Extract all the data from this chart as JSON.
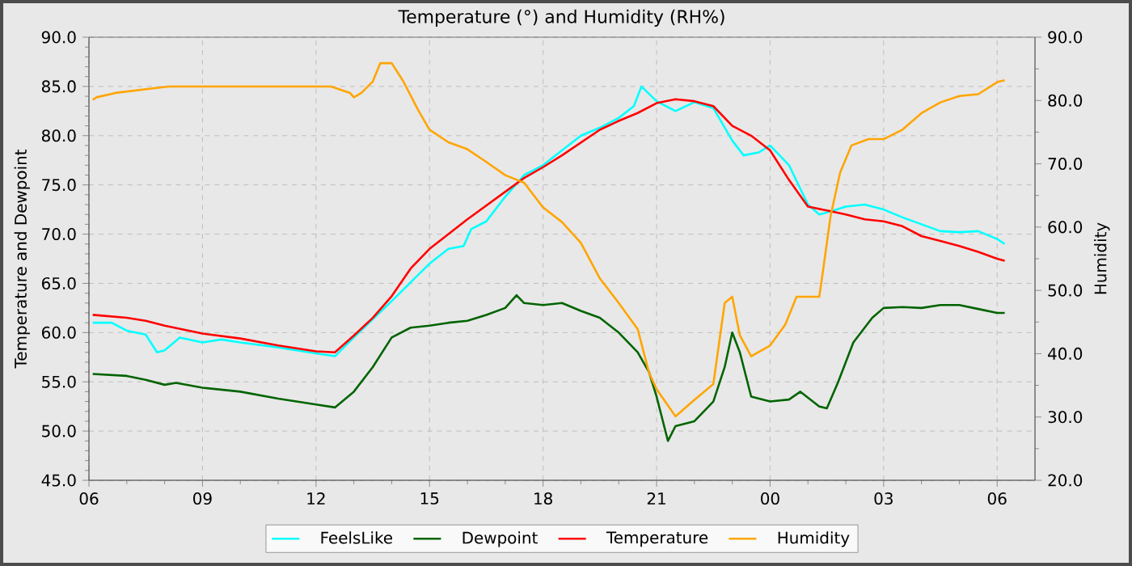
{
  "chart_data": {
    "type": "line",
    "title": "Temperature (°) and Humidity (RH%)",
    "ylabel": "Temperature and Dewpoint",
    "y2label": "Humidity",
    "xlim": [
      6,
      31
    ],
    "xticks": [
      {
        "value": 6,
        "label": "06"
      },
      {
        "value": 9,
        "label": "09"
      },
      {
        "value": 12,
        "label": "12"
      },
      {
        "value": 15,
        "label": "15"
      },
      {
        "value": 18,
        "label": "18"
      },
      {
        "value": 21,
        "label": "21"
      },
      {
        "value": 24,
        "label": "00"
      },
      {
        "value": 27,
        "label": "03"
      },
      {
        "value": 30,
        "label": "06"
      }
    ],
    "ylim": [
      45,
      90
    ],
    "yticks": [
      {
        "value": 45,
        "label": "45.0"
      },
      {
        "value": 50,
        "label": "50.0"
      },
      {
        "value": 55,
        "label": "55.0"
      },
      {
        "value": 60,
        "label": "60.0"
      },
      {
        "value": 65,
        "label": "65.0"
      },
      {
        "value": 70,
        "label": "70.0"
      },
      {
        "value": 75,
        "label": "75.0"
      },
      {
        "value": 80,
        "label": "80.0"
      },
      {
        "value": 85,
        "label": "85.0"
      },
      {
        "value": 90,
        "label": "90.0"
      }
    ],
    "y2lim": [
      20,
      90
    ],
    "y2ticks": [
      {
        "value": 20,
        "label": "20.0"
      },
      {
        "value": 30,
        "label": "30.0"
      },
      {
        "value": 40,
        "label": "40.0"
      },
      {
        "value": 50,
        "label": "50.0"
      },
      {
        "value": 60,
        "label": "60.0"
      },
      {
        "value": 70,
        "label": "70.0"
      },
      {
        "value": 80,
        "label": "80.0"
      },
      {
        "value": 90,
        "label": "90.0"
      }
    ],
    "grid": true,
    "legend": "bottom",
    "marker": "none",
    "line_style": "solid",
    "series": [
      {
        "name": "FeelsLike",
        "color": "#00ffff",
        "x": [
          6.1,
          6.6,
          7.0,
          7.5,
          7.8,
          8.0,
          8.4,
          9.0,
          9.5,
          10.0,
          11.0,
          12.0,
          12.5,
          13.0,
          14.0,
          15.0,
          15.5,
          15.9,
          16.1,
          16.5,
          17.0,
          17.5,
          18.0,
          18.5,
          19.0,
          19.5,
          20.0,
          20.4,
          20.6,
          21.0,
          21.5,
          22.0,
          22.5,
          23.0,
          23.3,
          23.7,
          24.0,
          24.5,
          25.0,
          25.3,
          25.6,
          26.0,
          26.5,
          27.0,
          27.5,
          28.0,
          28.5,
          29.0,
          29.5,
          30.0,
          30.2
        ],
        "values": [
          61.0,
          61.0,
          60.2,
          59.8,
          58.0,
          58.2,
          59.5,
          59.0,
          59.3,
          59.0,
          58.5,
          57.9,
          57.6,
          59.5,
          63.2,
          67.0,
          68.5,
          68.8,
          70.5,
          71.3,
          73.8,
          76.0,
          77.0,
          78.5,
          80.0,
          80.8,
          81.8,
          83.0,
          85.0,
          83.5,
          82.5,
          83.4,
          82.8,
          79.5,
          78.0,
          78.3,
          79.0,
          77.0,
          73.0,
          72.0,
          72.3,
          72.8,
          73.0,
          72.5,
          71.7,
          71.0,
          70.3,
          70.2,
          70.3,
          69.5,
          69.0
        ]
      },
      {
        "name": "Dewpoint",
        "color": "#006400",
        "x": [
          6.1,
          7.0,
          7.5,
          8.0,
          8.3,
          9.0,
          10.0,
          11.0,
          12.0,
          12.5,
          13.0,
          13.5,
          14.0,
          14.5,
          15.0,
          15.5,
          16.0,
          16.5,
          17.0,
          17.3,
          17.5,
          18.0,
          18.5,
          19.0,
          19.5,
          20.0,
          20.5,
          20.8,
          21.0,
          21.3,
          21.5,
          22.0,
          22.5,
          22.8,
          23.0,
          23.2,
          23.5,
          24.0,
          24.5,
          24.8,
          25.3,
          25.5,
          25.8,
          26.2,
          26.7,
          27.0,
          27.5,
          28.0,
          28.5,
          29.0,
          29.5,
          30.0,
          30.2
        ],
        "values": [
          55.8,
          55.6,
          55.2,
          54.7,
          54.9,
          54.4,
          54.0,
          53.3,
          52.7,
          52.4,
          54.0,
          56.5,
          59.5,
          60.5,
          60.7,
          61.0,
          61.2,
          61.8,
          62.5,
          63.8,
          63.0,
          62.8,
          63.0,
          62.2,
          61.5,
          60.0,
          58.0,
          56.0,
          53.5,
          49.0,
          50.5,
          51.0,
          53.0,
          56.5,
          60.0,
          58.0,
          53.5,
          53.0,
          53.2,
          54.0,
          52.5,
          52.3,
          55.0,
          59.0,
          61.5,
          62.5,
          62.6,
          62.5,
          62.8,
          62.8,
          62.4,
          62.0,
          62.0
        ]
      },
      {
        "name": "Temperature",
        "color": "#ff0000",
        "x": [
          6.1,
          7.0,
          7.5,
          8.0,
          9.0,
          10.0,
          11.0,
          12.0,
          12.5,
          13.0,
          13.5,
          14.0,
          14.5,
          15.0,
          15.5,
          16.0,
          17.0,
          17.5,
          18.0,
          18.5,
          19.0,
          19.5,
          20.0,
          20.5,
          21.0,
          21.5,
          22.0,
          22.5,
          23.0,
          23.5,
          24.0,
          24.5,
          25.0,
          25.5,
          26.0,
          26.5,
          27.0,
          27.5,
          28.0,
          28.5,
          29.0,
          29.5,
          30.0,
          30.2
        ],
        "values": [
          61.8,
          61.5,
          61.2,
          60.7,
          59.9,
          59.4,
          58.7,
          58.1,
          58.0,
          59.7,
          61.5,
          63.7,
          66.5,
          68.5,
          70.0,
          71.5,
          74.3,
          75.7,
          76.8,
          78.0,
          79.3,
          80.6,
          81.5,
          82.3,
          83.3,
          83.7,
          83.5,
          83.0,
          81.0,
          80.0,
          78.5,
          75.5,
          72.8,
          72.4,
          72.0,
          71.5,
          71.3,
          70.8,
          69.8,
          69.3,
          68.8,
          68.2,
          67.5,
          67.3
        ]
      },
      {
        "name": "Humidity",
        "color": "#ffa500",
        "axis": "y2",
        "x": [
          6.1,
          6.2,
          6.7,
          8.1,
          12.4,
          12.9,
          13.0,
          13.2,
          13.5,
          13.7,
          14.0,
          14.3,
          14.7,
          15.0,
          15.5,
          16.0,
          16.5,
          17.0,
          17.5,
          18.0,
          18.5,
          19.0,
          19.5,
          20.0,
          20.5,
          20.8,
          21.0,
          21.5,
          22.0,
          22.5,
          22.8,
          23.0,
          23.2,
          23.5,
          24.0,
          24.4,
          24.7,
          25.3,
          25.4,
          25.6,
          25.85,
          26.15,
          26.6,
          27.0,
          27.5,
          28.0,
          28.5,
          29.0,
          29.5,
          30.0,
          30.2
        ],
        "values": [
          80.1,
          80.5,
          81.2,
          82.2,
          82.2,
          81.2,
          80.5,
          81.2,
          83.0,
          85.9,
          85.9,
          83.1,
          78.5,
          75.4,
          73.4,
          72.3,
          70.3,
          68.2,
          67.0,
          63.1,
          60.8,
          57.5,
          51.9,
          48.0,
          43.9,
          37.0,
          34.4,
          30.1,
          32.7,
          35.2,
          48.0,
          49.0,
          42.9,
          39.6,
          41.3,
          44.6,
          49.0,
          49.0,
          53.2,
          61.8,
          68.6,
          72.9,
          73.9,
          73.9,
          75.4,
          78.0,
          79.7,
          80.7,
          81.0,
          82.9,
          83.2
        ]
      }
    ]
  }
}
